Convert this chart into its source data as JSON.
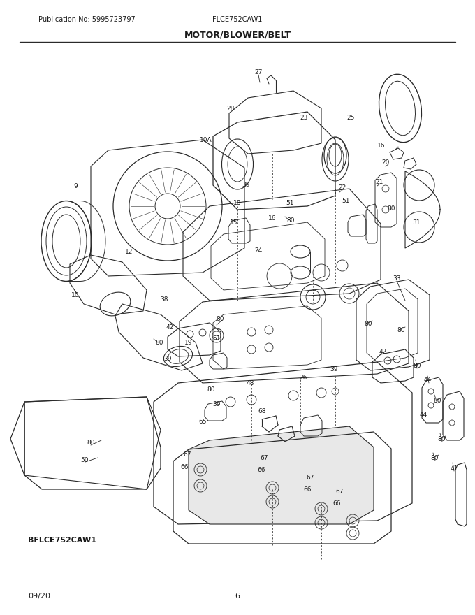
{
  "title": "MOTOR/BLOWER/BELT",
  "publication": "Publication No: 5995723797",
  "model": "FLCE752CAW1",
  "bottom_left": "BFLCE752CAW1",
  "bottom_date": "09/20",
  "bottom_page": "6",
  "bg_color": "#ffffff",
  "line_color": "#2a2a2a",
  "text_color": "#1a1a1a",
  "fig_width": 6.8,
  "fig_height": 8.8,
  "dpi": 100
}
